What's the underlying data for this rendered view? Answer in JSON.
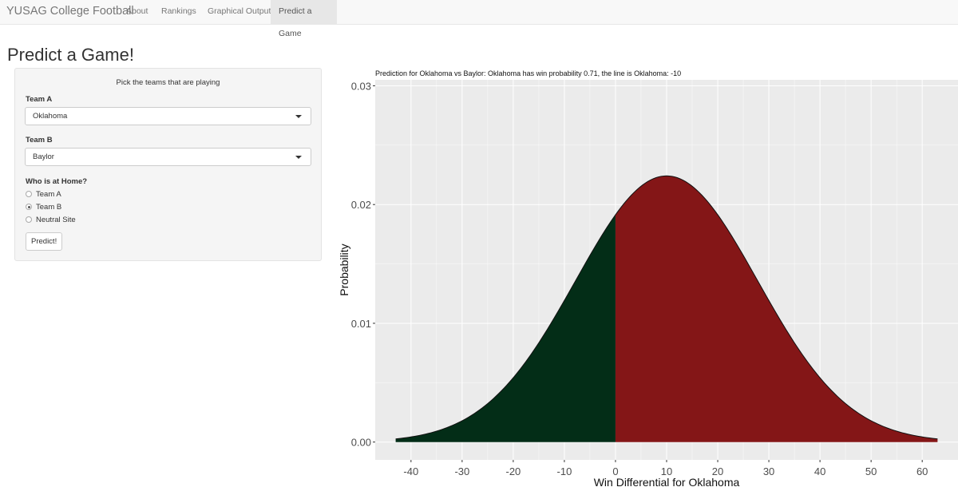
{
  "navbar": {
    "brand": "YUSAG College Football",
    "items": [
      {
        "label": "About",
        "active": false
      },
      {
        "label": "Rankings",
        "active": false
      },
      {
        "label": "Graphical Output",
        "active": false
      },
      {
        "label": "Predict a Game",
        "active": true
      }
    ]
  },
  "page": {
    "title": "Predict a Game!"
  },
  "form": {
    "heading": "Pick the teams that are playing",
    "team_a": {
      "label": "Team A",
      "value": "Oklahoma"
    },
    "team_b": {
      "label": "Team B",
      "value": "Baylor"
    },
    "home": {
      "label": "Who is at Home?",
      "options": [
        {
          "label": "Team A",
          "checked": false
        },
        {
          "label": "Team B",
          "checked": true
        },
        {
          "label": "Neutral Site",
          "checked": false
        }
      ]
    },
    "button_label": "Predict!"
  },
  "chart_data": {
    "type": "area",
    "title": "Prediction for Oklahoma vs Baylor:  Oklahoma has win probability 0.71, the line is Oklahoma:  -10",
    "xlabel": "Win Differential for Oklahoma",
    "ylabel": "Probability",
    "distribution": {
      "kind": "normal",
      "mean": 10,
      "sd": 17.8
    },
    "x_range": [
      -43,
      63
    ],
    "xlim": [
      -47,
      67
    ],
    "ylim": [
      -0.0015,
      0.0305
    ],
    "x_ticks": [
      -40,
      -30,
      -20,
      -10,
      0,
      10,
      20,
      30,
      40,
      50,
      60
    ],
    "x_tick_labels": [
      "-40",
      "-30",
      "-20",
      "-10",
      "0",
      "10",
      "20",
      "30",
      "40",
      "50",
      "60"
    ],
    "y_ticks": [
      0.0,
      0.01,
      0.02,
      0.03
    ],
    "y_tick_labels": [
      "0.00",
      "0.01",
      "0.02",
      "0.03"
    ],
    "grid": true,
    "split_at": 0,
    "colors": {
      "below_split": "#032d17",
      "above_split": "#841617",
      "panel_bg": "#ebebeb",
      "grid": "#ffffff"
    }
  }
}
